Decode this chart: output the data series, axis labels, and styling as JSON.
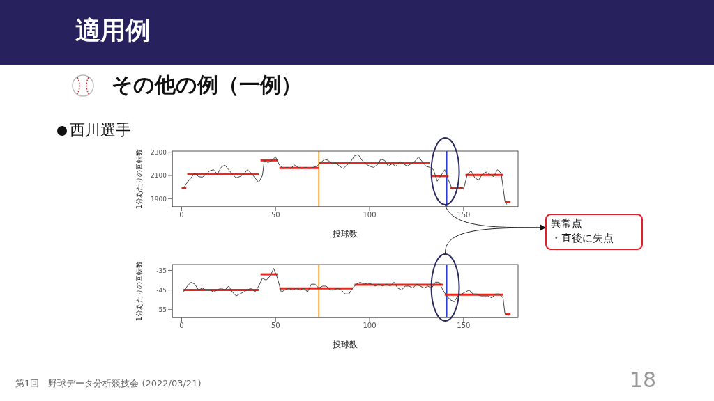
{
  "chart_data": [
    {
      "type": "line",
      "title": "適用例",
      "subtitle": "その他の例（一例）",
      "xlabel": "投球数",
      "ylabel": "1分あたりの回転数",
      "annotations": [
        "西川選手",
        "異常点",
        "・直後に失点"
      ],
      "xlim": [
        -5,
        179
      ],
      "xticks": [
        0,
        50,
        100,
        150
      ],
      "ylim": [
        1830,
        2310
      ],
      "yticks": [
        1900,
        2100,
        2300
      ],
      "grid": false,
      "marker": "none",
      "series": [
        {
          "color": "#e8281e",
          "x": [
            0,
            2.5
          ],
          "values": [
            1990,
            1990
          ]
        },
        {
          "color": "#e8281e",
          "x": [
            3,
            41
          ],
          "values": [
            2110,
            2110
          ]
        },
        {
          "color": "#e8281e",
          "x": [
            42,
            51
          ],
          "values": [
            2230,
            2230
          ]
        },
        {
          "color": "#e8281e",
          "x": [
            52,
            73
          ],
          "values": [
            2165,
            2165
          ]
        },
        {
          "color": "#e8281e",
          "x": [
            73,
            132
          ],
          "values": [
            2205,
            2205
          ]
        },
        {
          "color": "#e8281e",
          "x": [
            133,
            142
          ],
          "values": [
            2095,
            2095
          ]
        },
        {
          "color": "#e8281e",
          "x": [
            143,
            150
          ],
          "values": [
            1990,
            1990
          ]
        },
        {
          "color": "#e8281e",
          "x": [
            151,
            171
          ],
          "values": [
            2105,
            2105
          ]
        },
        {
          "color": "#e8281e",
          "x": [
            172,
            175
          ],
          "values": [
            1870,
            1870
          ]
        },
        {
          "color": "#444444",
          "x": [
            1,
            3,
            5,
            7,
            9,
            11,
            13,
            15,
            17,
            19,
            21,
            23,
            25,
            27,
            29,
            31,
            33,
            35,
            37,
            39,
            41,
            43,
            44,
            46,
            48,
            50,
            52,
            54,
            56,
            58,
            60,
            62,
            64,
            66,
            68,
            70,
            72,
            74,
            76,
            78,
            80,
            82,
            84,
            86,
            88,
            90,
            92,
            94,
            96,
            98,
            100,
            102,
            104,
            106,
            108,
            110,
            112,
            114,
            116,
            118,
            120,
            122,
            124,
            126,
            128,
            130,
            132,
            134,
            136,
            138,
            140,
            142,
            144,
            146,
            148,
            150,
            152,
            154,
            156,
            158,
            160,
            162,
            164,
            166,
            168,
            170,
            172,
            173
          ],
          "values": [
            1990,
            2040,
            2080,
            2120,
            2090,
            2085,
            2110,
            2140,
            2150,
            2110,
            2170,
            2190,
            2150,
            2110,
            2080,
            2090,
            2110,
            2150,
            2120,
            2080,
            2040,
            2100,
            2230,
            2210,
            2230,
            2260,
            2190,
            2160,
            2170,
            2160,
            2190,
            2170,
            2160,
            2170,
            2160,
            2170,
            2180,
            2210,
            2240,
            2230,
            2200,
            2210,
            2180,
            2160,
            2190,
            2220,
            2270,
            2280,
            2230,
            2200,
            2180,
            2170,
            2190,
            2240,
            2230,
            2180,
            2200,
            2180,
            2220,
            2200,
            2180,
            2200,
            2220,
            2260,
            2220,
            2180,
            2170,
            2150,
            2050,
            2100,
            2150,
            2060,
            1980,
            1990,
            2000,
            1980,
            2110,
            2140,
            2080,
            2060,
            2110,
            2130,
            2110,
            2090,
            2150,
            2120,
            1880,
            1850
          ]
        }
      ],
      "ref_lines": [
        {
          "axis": "x",
          "value": 73,
          "color": "#f0a830"
        },
        {
          "axis": "x",
          "value": 141,
          "color": "#2a3fd0"
        }
      ]
    },
    {
      "type": "line",
      "xlabel": "投球数",
      "ylabel": "1分あたりの回転数",
      "annotations": [
        "第1回　野球データ分析競技会 (2022/03/21)",
        "18"
      ],
      "xlim": [
        -5,
        179
      ],
      "xticks": [
        0,
        50,
        100,
        150
      ],
      "ylim": [
        -59,
        -32
      ],
      "yticks": [
        -35,
        -45,
        -55
      ],
      "grid": false,
      "marker": "none",
      "series": [
        {
          "color": "#e8281e",
          "x": [
            1,
            41
          ],
          "values": [
            -45,
            -45
          ]
        },
        {
          "color": "#e8281e",
          "x": [
            42,
            51
          ],
          "values": [
            -37,
            -37
          ]
        },
        {
          "color": "#e8281e",
          "x": [
            52,
            91
          ],
          "values": [
            -44.2,
            -44.2
          ]
        },
        {
          "color": "#e8281e",
          "x": [
            92,
            139
          ],
          "values": [
            -42.3,
            -42.3
          ]
        },
        {
          "color": "#e8281e",
          "x": [
            140,
            171
          ],
          "values": [
            -47.4,
            -47.4
          ]
        },
        {
          "color": "#e8281e",
          "x": [
            172,
            175
          ],
          "values": [
            -57.3,
            -57.3
          ]
        },
        {
          "color": "#444444",
          "x": [
            1,
            3,
            5,
            7,
            9,
            11,
            13,
            15,
            17,
            19,
            21,
            23,
            25,
            27,
            29,
            31,
            33,
            35,
            37,
            39,
            41,
            43,
            45,
            47,
            49,
            51,
            53,
            55,
            57,
            59,
            61,
            63,
            65,
            67,
            69,
            71,
            73,
            75,
            77,
            79,
            81,
            83,
            85,
            87,
            89,
            91,
            93,
            95,
            97,
            99,
            101,
            103,
            105,
            107,
            109,
            111,
            113,
            115,
            117,
            119,
            121,
            123,
            125,
            127,
            129,
            131,
            133,
            135,
            137,
            139,
            141,
            143,
            145,
            147,
            149,
            151,
            153,
            155,
            157,
            159,
            161,
            163,
            165,
            167,
            169,
            171,
            172,
            174
          ],
          "values": [
            -46,
            -43,
            -41,
            -42,
            -45,
            -44,
            -45,
            -45,
            -46,
            -45,
            -44,
            -45,
            -43,
            -46,
            -48,
            -47,
            -46,
            -45,
            -44,
            -46,
            -43,
            -39,
            -40,
            -38,
            -34,
            -39,
            -46,
            -45,
            -44,
            -45,
            -44,
            -45,
            -44,
            -46,
            -42,
            -42,
            -44,
            -43,
            -43,
            -45,
            -45,
            -44,
            -45,
            -47,
            -47,
            -44,
            -42,
            -41,
            -42,
            -41.5,
            -42,
            -43,
            -42,
            -43,
            -42,
            -43,
            -41,
            -44,
            -45,
            -43,
            -43,
            -44,
            -42,
            -43,
            -44,
            -43,
            -44,
            -41,
            -41,
            -45,
            -48,
            -50,
            -51,
            -48,
            -47,
            -46,
            -45,
            -47,
            -47,
            -48,
            -48,
            -48,
            -49,
            -47,
            -47,
            -49,
            -57,
            -58
          ]
        }
      ],
      "ref_lines": [
        {
          "axis": "x",
          "value": 73,
          "color": "#f0a830"
        },
        {
          "axis": "x",
          "value": 141,
          "color": "#2a3fd0"
        }
      ]
    }
  ]
}
